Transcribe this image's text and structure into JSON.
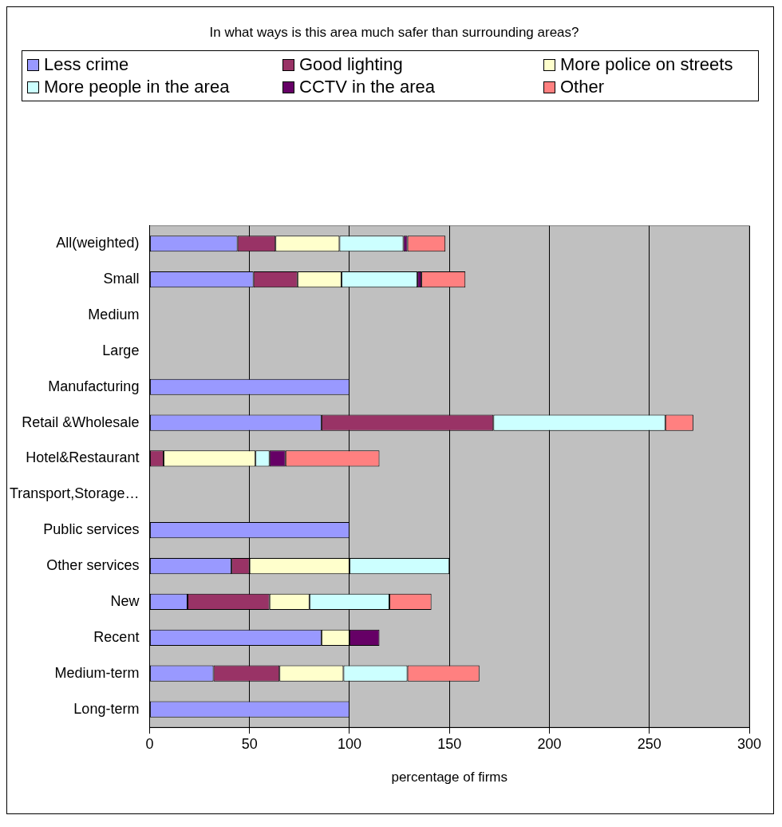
{
  "chart_data": {
    "type": "bar",
    "orientation": "horizontal",
    "stacked": true,
    "title": "In what ways is this area much safer than surrounding areas?",
    "xlabel": "percentage of firms",
    "categories": [
      "All(weighted)",
      "Small",
      "Medium",
      "Large",
      "Manufacturing",
      "Retail &Wholesale",
      "Hotel&Restaurant",
      "Transport,Storage…",
      "Public services",
      "Other services",
      "New",
      "Recent",
      "Medium-term",
      "Long-term"
    ],
    "series": [
      {
        "name": "Less crime",
        "color": "#9999ff",
        "values": [
          44,
          52,
          0,
          0,
          100,
          86,
          0,
          0,
          100,
          41,
          19,
          86,
          32,
          100
        ]
      },
      {
        "name": "Good lighting",
        "color": "#993366",
        "values": [
          19,
          22,
          0,
          0,
          0,
          86,
          7,
          0,
          0,
          9,
          41,
          0,
          33,
          0
        ]
      },
      {
        "name": "More police on streets",
        "color": "#ffffcc",
        "values": [
          32,
          22,
          0,
          0,
          0,
          0,
          46,
          0,
          0,
          50,
          20,
          14,
          32,
          0
        ]
      },
      {
        "name": "More people in the area",
        "color": "#ccffff",
        "values": [
          32,
          38,
          0,
          0,
          0,
          86,
          7,
          0,
          0,
          50,
          40,
          0,
          32,
          0
        ]
      },
      {
        "name": "CCTV in the area",
        "color": "#660066",
        "values": [
          2,
          2,
          0,
          0,
          0,
          0,
          8,
          0,
          0,
          0,
          0,
          15,
          0,
          0
        ]
      },
      {
        "name": "Other",
        "color": "#ff8080",
        "values": [
          19,
          22,
          0,
          0,
          0,
          14,
          47,
          0,
          0,
          0,
          21,
          0,
          36,
          0
        ]
      }
    ],
    "xlim": [
      0,
      300
    ],
    "xticks": [
      0,
      50,
      100,
      150,
      200,
      250,
      300
    ],
    "grid": "x",
    "legend": "top"
  }
}
